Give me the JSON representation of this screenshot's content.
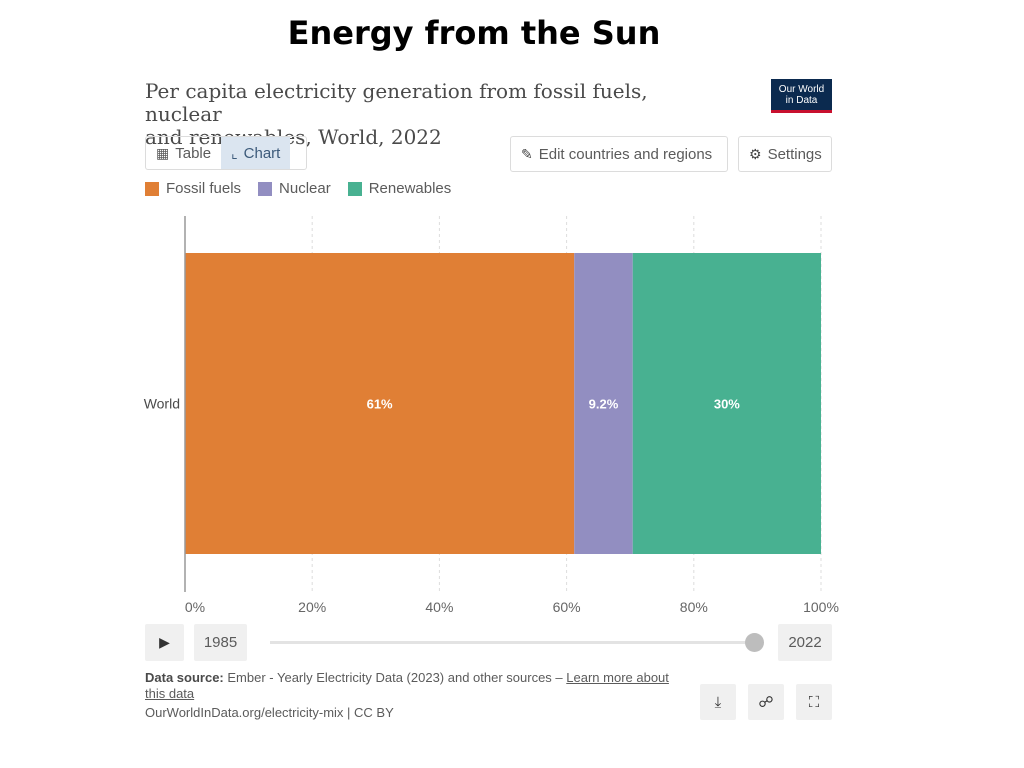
{
  "slide_title": "Energy from the Sun",
  "chart_title_line1": "Per capita electricity generation from fossil fuels, nuclear",
  "chart_title_line2": "and renewables, World, 2022",
  "logo": {
    "line1": "Our World",
    "line2": "in Data"
  },
  "tabs": [
    {
      "label": "Table",
      "icon": "table-icon"
    },
    {
      "label": "Chart",
      "icon": "chart-icon",
      "active": true
    }
  ],
  "buttons": {
    "edit": "Edit countries and regions",
    "settings": "Settings"
  },
  "chart_data": {
    "type": "bar",
    "orientation": "horizontal",
    "stacked": true,
    "normalized": true,
    "categories": [
      "World"
    ],
    "series": [
      {
        "name": "Fossil fuels",
        "values": [
          61.2
        ],
        "label": "61%",
        "color": "#e07f35"
      },
      {
        "name": "Nuclear",
        "values": [
          9.2
        ],
        "label": "9.2%",
        "color": "#928ec1"
      },
      {
        "name": "Renewables",
        "values": [
          29.6
        ],
        "label": "30%",
        "color": "#48b191"
      }
    ],
    "x_ticks": [
      "0%",
      "20%",
      "40%",
      "60%",
      "80%",
      "100%"
    ],
    "xlim": [
      0,
      100
    ],
    "grid": true,
    "legend": "top-left"
  },
  "timeline": {
    "start_year": "1985",
    "end_year": "2022",
    "position": 1.0
  },
  "footer": {
    "source_label": "Data source:",
    "source_text": "Ember - Yearly Electricity Data (2023) and other sources –",
    "learn_more": "Learn more about this data",
    "url_line": "OurWorldInData.org/electricity-mix | CC BY"
  },
  "icons": {
    "download": "download-icon",
    "share": "share-icon",
    "fullscreen": "fullscreen-icon"
  }
}
